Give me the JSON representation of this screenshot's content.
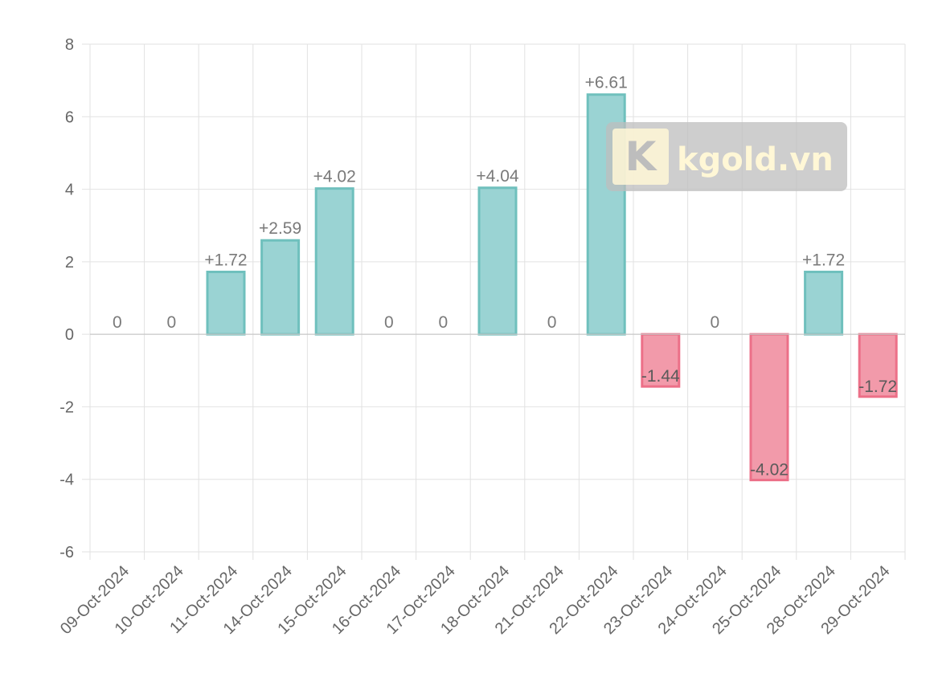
{
  "chart_data": {
    "type": "bar",
    "title": "",
    "xlabel": "",
    "ylabel": "",
    "categories": [
      "09-Oct-2024",
      "10-Oct-2024",
      "11-Oct-2024",
      "14-Oct-2024",
      "15-Oct-2024",
      "16-Oct-2024",
      "17-Oct-2024",
      "18-Oct-2024",
      "21-Oct-2024",
      "22-Oct-2024",
      "23-Oct-2024",
      "24-Oct-2024",
      "25-Oct-2024",
      "28-Oct-2024",
      "29-Oct-2024"
    ],
    "values": [
      0,
      0,
      1.72,
      2.59,
      4.02,
      0,
      0,
      4.04,
      0,
      6.61,
      -1.44,
      0,
      -4.02,
      1.72,
      -1.72
    ],
    "data_labels": [
      "0",
      "0",
      "+1.72",
      "+2.59",
      "+4.02",
      "0",
      "0",
      "+4.04",
      "0",
      "+6.61",
      "-1.44",
      "0",
      "-4.02",
      "+1.72",
      "-1.72"
    ],
    "ylim": [
      -6,
      8
    ],
    "yticks": [
      "8",
      "6",
      "4",
      "2",
      "0",
      "-2",
      "-4",
      "-6"
    ],
    "grid": true,
    "colors": {
      "positive_fill": "#9ad3d3",
      "positive_stroke": "#6fc0bd",
      "negative_fill": "#f29aaa",
      "negative_stroke": "#ec7088"
    }
  },
  "watermark": {
    "logo_letter": "K",
    "text": "kgold.vn"
  }
}
